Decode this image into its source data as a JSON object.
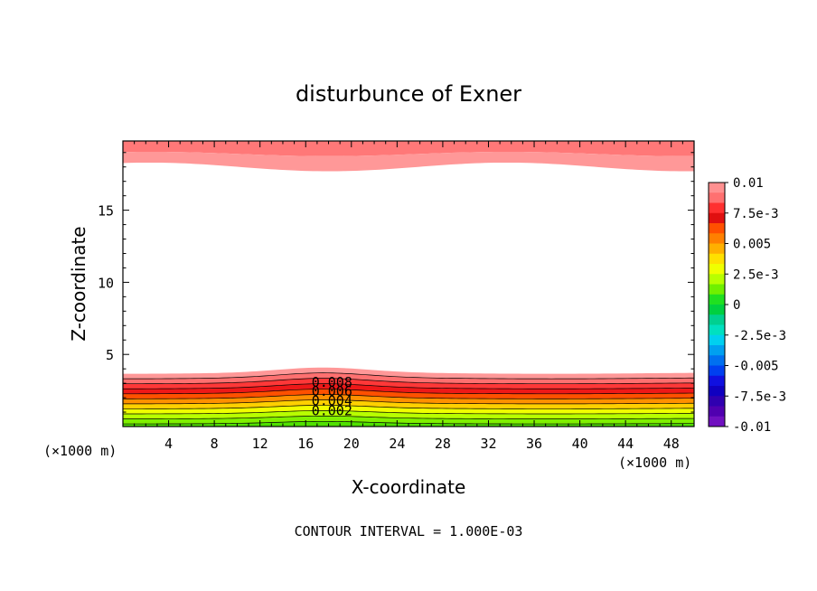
{
  "chart_data": {
    "type": "contour",
    "title": "disturbunce of Exner",
    "xlabel": "X-coordinate",
    "ylabel": "Z-coordinate",
    "x_unit_left": "(×1000 m)",
    "x_unit_right": "(×1000 m)",
    "footer": "CONTOUR INTERVAL = 1.000E-03",
    "xlim": [
      0,
      50
    ],
    "ylim": [
      0,
      19.8
    ],
    "x_ticks": [
      4,
      8,
      12,
      16,
      20,
      24,
      28,
      32,
      36,
      40,
      44,
      48
    ],
    "x_tick_labels": [
      "4",
      "8",
      "12",
      "16",
      "20",
      "24",
      "28",
      "32",
      "36",
      "40",
      "44",
      "48"
    ],
    "y_ticks": [
      5,
      10,
      15
    ],
    "y_tick_labels": [
      "5",
      "10",
      "15"
    ],
    "contour_labels": [
      {
        "text": "0.008",
        "x": 18.3,
        "z": 3.08
      },
      {
        "text": "0.006",
        "x": 18.3,
        "z": 2.45
      },
      {
        "text": "0.004",
        "x": 18.3,
        "z": 1.78
      },
      {
        "text": "0.002",
        "x": 18.3,
        "z": 1.1
      }
    ],
    "bottom_layer": {
      "levels": [
        0,
        0.001,
        0.002,
        0.003,
        0.004,
        0.005,
        0.006,
        0.007,
        0.008,
        0.009,
        0.01
      ],
      "base_z": [
        0.2,
        0.55,
        0.9,
        1.25,
        1.6,
        1.95,
        2.3,
        2.65,
        3.0,
        3.35,
        3.7
      ],
      "bump_center_x": 17.5,
      "bump_width_x": 5.5,
      "bump_height_z": 0.35
    },
    "top_layer": {
      "levels": [
        0.01,
        0.009
      ],
      "base_z": [
        18.9,
        18.0
      ],
      "wave_amplitude_z": [
        0.15,
        0.3
      ]
    },
    "colorbar": {
      "labels": [
        "0.01",
        "7.5e-3",
        "0.005",
        "2.5e-3",
        "0",
        "-2.5e-3",
        "-0.005",
        "-7.5e-3",
        "-0.01"
      ],
      "colors": [
        "#ff9090",
        "#ff7070",
        "#ff3030",
        "#e01010",
        "#ff5000",
        "#ff8000",
        "#ffb000",
        "#ffe000",
        "#f0ff00",
        "#b8ff00",
        "#70f000",
        "#20e020",
        "#00d040",
        "#00d090",
        "#00e0c0",
        "#00d0f0",
        "#00a0f0",
        "#0070f0",
        "#0040f0",
        "#1010e0",
        "#1000c0",
        "#3000b0",
        "#5000b0",
        "#7010c0"
      ]
    },
    "fill_colors": [
      "#ffffff",
      "#50e000",
      "#80f000",
      "#b8ff00",
      "#f0ff00",
      "#ffd000",
      "#ff9000",
      "#ff5000",
      "#ee1818",
      "#ff3838",
      "#ff7070",
      "#ff9898"
    ]
  }
}
